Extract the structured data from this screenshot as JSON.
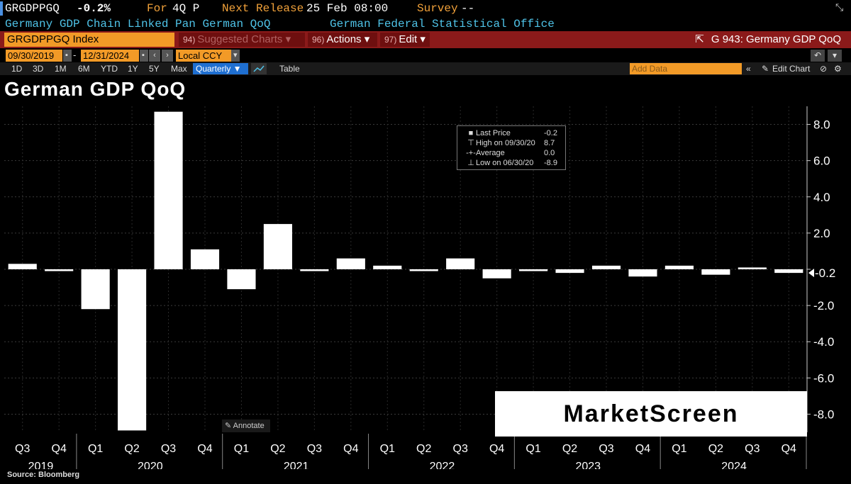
{
  "header": {
    "ticker": "GRGDPPGQ",
    "last_value": "-0.2%",
    "for_label": "For",
    "for_value": "4Q P",
    "next_release_label": "Next Release",
    "next_release_value": "25 Feb 08:00",
    "survey_label": "Survey",
    "survey_value": "--",
    "description": "Germany GDP Chain Linked Pan German QoQ",
    "source_org": "German Federal Statistical Office"
  },
  "toolbar": {
    "ticker_field": "GRGDPPGQ Index",
    "suggested_num": "94)",
    "suggested_label": "Suggested Charts ▾",
    "actions_num": "96)",
    "actions_label": "Actions ▾",
    "edit_num": "97)",
    "edit_label": "Edit ▾",
    "chart_id": "G 943: Germany GDP QoQ",
    "start_date": "09/30/2019",
    "end_date": "12/31/2024",
    "currency": "Local CCY",
    "ranges": [
      "1D",
      "3D",
      "1M",
      "6M",
      "YTD",
      "1Y",
      "5Y",
      "Max"
    ],
    "period": "Quarterly ▼",
    "table_label": "Table",
    "add_data_placeholder": "Add Data",
    "edit_chart_label": "Edit Chart"
  },
  "legend": {
    "rows": [
      {
        "mark": "■",
        "label": "Last Price",
        "value": "-0.2"
      },
      {
        "mark": "⊤",
        "label": "High on 09/30/20",
        "value": "8.7"
      },
      {
        "mark": "-+-",
        "label": "Average",
        "value": "0.0"
      },
      {
        "mark": "⊥",
        "label": "Low on 06/30/20",
        "value": "-8.9"
      }
    ]
  },
  "annotate_label": "Annotate",
  "watermark": "MarketScreen",
  "source": "Source: Bloomberg",
  "colors": {
    "background": "#000000",
    "bar": "#ffffff",
    "accent_orange": "#f2a23a",
    "accent_cyan": "#4fc3e8",
    "toolbar_red": "#8b1a1a"
  },
  "chart_data": {
    "type": "bar",
    "title": "German GDP QoQ",
    "xlabel": "",
    "ylabel": "",
    "ylim": [
      -9.0,
      9.0
    ],
    "yticks": [
      8.0,
      6.0,
      4.0,
      2.0,
      0,
      -2.0,
      -4.0,
      -6.0,
      -8.0
    ],
    "ytick_labels": [
      "8.0",
      "6.0",
      "4.0",
      "2.0",
      "",
      "-2.0",
      "-4.0",
      "-6.0",
      "-8.0"
    ],
    "grid": true,
    "last_value_label": "-0.2",
    "categories": [
      "Q3",
      "Q4",
      "Q1",
      "Q2",
      "Q3",
      "Q4",
      "Q1",
      "Q2",
      "Q3",
      "Q4",
      "Q1",
      "Q2",
      "Q3",
      "Q4",
      "Q1",
      "Q2",
      "Q3",
      "Q4",
      "Q1",
      "Q2",
      "Q3",
      "Q4"
    ],
    "years": [
      {
        "label": "2019",
        "start": 0,
        "end": 1
      },
      {
        "label": "2020",
        "start": 2,
        "end": 5
      },
      {
        "label": "2021",
        "start": 6,
        "end": 9
      },
      {
        "label": "2022",
        "start": 10,
        "end": 13
      },
      {
        "label": "2023",
        "start": 14,
        "end": 17
      },
      {
        "label": "2024",
        "start": 18,
        "end": 21
      }
    ],
    "values": [
      0.3,
      -0.1,
      -2.2,
      -8.9,
      8.7,
      1.1,
      -1.1,
      2.5,
      -0.1,
      0.6,
      0.2,
      -0.1,
      0.6,
      -0.5,
      -0.1,
      -0.2,
      0.2,
      -0.4,
      0.2,
      -0.3,
      0.1,
      -0.2
    ]
  }
}
